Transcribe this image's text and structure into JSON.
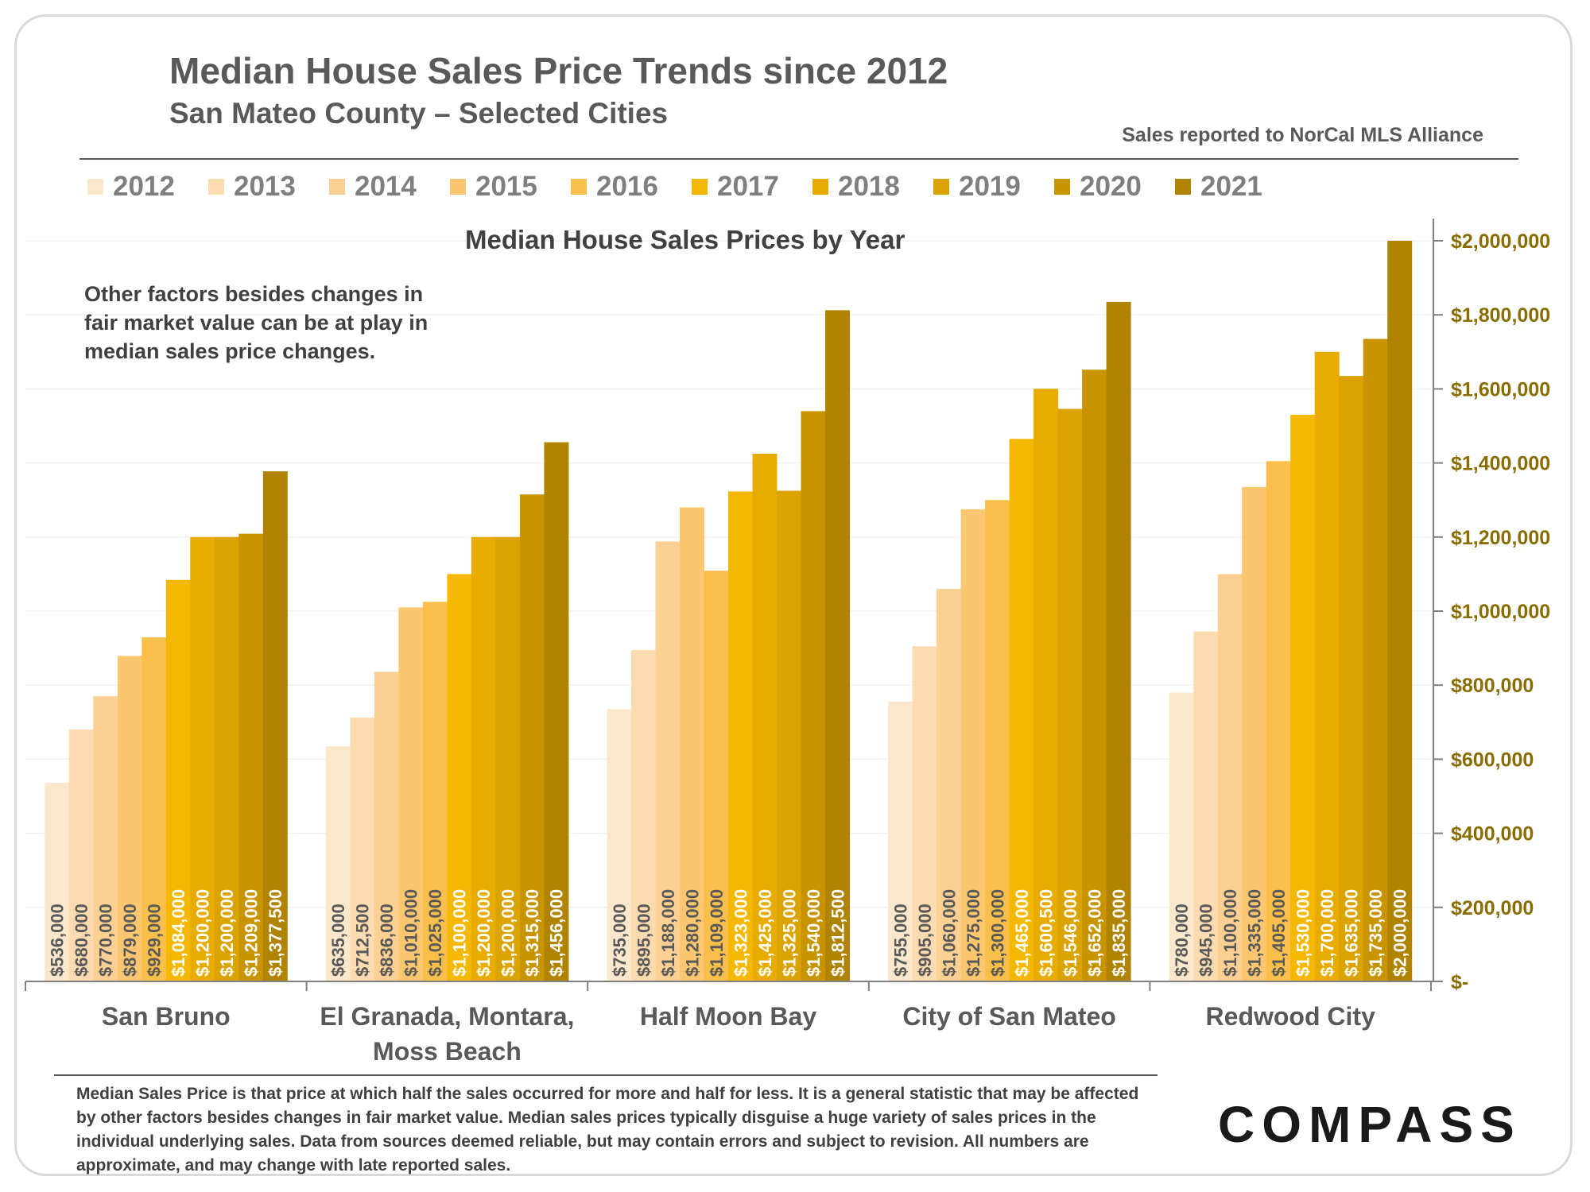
{
  "header": {
    "title": "Median House Sales Price Trends since 2012",
    "subtitle": "San Mateo County – Selected Cities",
    "source": "Sales reported to NorCal MLS Alliance"
  },
  "chart_heading": "Median House Sales Prices by Year",
  "note": "Other factors besides changes in fair market value can be at play in median sales price changes.",
  "footnote": "Median Sales Price is that price at which half the sales occurred for more and half for less. It is a general statistic that may be affected by other factors besides changes in fair market value. Median sales prices typically disguise a huge variety of sales prices in the individual underlying sales. Data from sources deemed reliable, but may contain errors and subject to revision. All numbers are approximate, and may change with late reported sales.",
  "logo": "COMPASS",
  "chart_data": {
    "type": "bar",
    "title": "Median House Sales Prices by Year",
    "categories": [
      "San Bruno",
      "El Granada, Montara, Moss Beach",
      "Half Moon Bay",
      "City of San Mateo",
      "Redwood City"
    ],
    "ylim": [
      0,
      2000000
    ],
    "y_ticks": [
      0,
      200000,
      400000,
      600000,
      800000,
      1000000,
      1200000,
      1400000,
      1600000,
      1800000,
      2000000
    ],
    "y_tick_labels": [
      "$-",
      "$200,000",
      "$400,000",
      "$600,000",
      "$800,000",
      "$1,000,000",
      "$1,200,000",
      "$1,400,000",
      "$1,600,000",
      "$1,800,000",
      "$2,000,000"
    ],
    "y_axis_position": "right",
    "legend_position": "top",
    "series": [
      {
        "name": "2012",
        "color": "#fbe7cb",
        "values": [
          536000,
          635000,
          735000,
          755000,
          780000
        ],
        "labels": [
          "$536,000",
          "$635,000",
          "$735,000",
          "$755,000",
          "$780,000"
        ]
      },
      {
        "name": "2013",
        "color": "#fcdbb0",
        "values": [
          680000,
          712500,
          895000,
          905000,
          945000
        ],
        "labels": [
          "$680,000",
          "$712,500",
          "$895,000",
          "$905,000",
          "$945,000"
        ]
      },
      {
        "name": "2014",
        "color": "#fbd092",
        "values": [
          770000,
          836000,
          1188000,
          1060000,
          1100000
        ],
        "labels": [
          "$770,000",
          "$836,000",
          "$1,188,000",
          "$1,060,000",
          "$1,100,000"
        ]
      },
      {
        "name": "2015",
        "color": "#fac670",
        "values": [
          879000,
          1010000,
          1280000,
          1275000,
          1335000
        ],
        "labels": [
          "$879,000",
          "$1,010,000",
          "$1,280,000",
          "$1,275,000",
          "$1,335,000"
        ]
      },
      {
        "name": "2016",
        "color": "#fabf4a",
        "values": [
          929000,
          1025000,
          1109000,
          1300000,
          1405000
        ],
        "labels": [
          "$929,000",
          "$1,025,000",
          "$1,109,000",
          "$1,300,000",
          "$1,405,000"
        ]
      },
      {
        "name": "2017",
        "color": "#f5b800",
        "values": [
          1084000,
          1100000,
          1323000,
          1465000,
          1530000
        ],
        "labels": [
          "$1,084,000",
          "$1,100,000",
          "$1,323,000",
          "$1,465,000",
          "$1,530,000"
        ]
      },
      {
        "name": "2018",
        "color": "#e8ac00",
        "values": [
          1200000,
          1200000,
          1425000,
          1600500,
          1700000
        ],
        "labels": [
          "$1,200,000",
          "$1,200,000",
          "$1,425,000",
          "$1,600,500",
          "$1,700,000"
        ]
      },
      {
        "name": "2019",
        "color": "#dba300",
        "values": [
          1200000,
          1200000,
          1325000,
          1546000,
          1635000
        ],
        "labels": [
          "$1,200,000",
          "$1,200,000",
          "$1,325,000",
          "$1,546,000",
          "$1,635,000"
        ]
      },
      {
        "name": "2020",
        "color": "#c89400",
        "values": [
          1209000,
          1315000,
          1540000,
          1652000,
          1735000
        ],
        "labels": [
          "$1,209,000",
          "$1,315,000",
          "$1,540,000",
          "$1,652,000",
          "$1,735,000"
        ]
      },
      {
        "name": "2021",
        "color": "#b08400",
        "values": [
          1377500,
          1456000,
          1812500,
          1835000,
          2000000
        ],
        "labels": [
          "$1,377,500",
          "$1,456,000",
          "$1,812,500",
          "$1,835,000",
          "$2,000,000"
        ]
      }
    ]
  }
}
